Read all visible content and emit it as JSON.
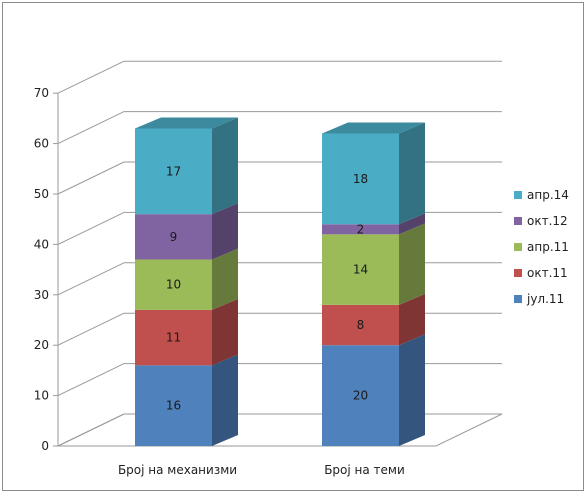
{
  "chart_data": {
    "type": "bar",
    "stacked": true,
    "three_d": true,
    "title": "",
    "xlabel": "",
    "ylabel": "",
    "ylim": [
      0,
      70
    ],
    "yticks": [
      0,
      10,
      20,
      30,
      40,
      50,
      60,
      70
    ],
    "grid": true,
    "legend_position": "right",
    "categories": [
      "Број на механизми",
      "Број на теми"
    ],
    "series": [
      {
        "name": "јул.11",
        "values": [
          16,
          20
        ],
        "color": "#4f81bd"
      },
      {
        "name": "окт.11",
        "values": [
          11,
          8
        ],
        "color": "#c0504d"
      },
      {
        "name": "апр.11",
        "values": [
          10,
          14
        ],
        "color": "#9bbb59"
      },
      {
        "name": "окт.12",
        "values": [
          9,
          2
        ],
        "color": "#8064a2"
      },
      {
        "name": "апр.14",
        "values": [
          17,
          18
        ],
        "color": "#4bacc6"
      }
    ]
  }
}
